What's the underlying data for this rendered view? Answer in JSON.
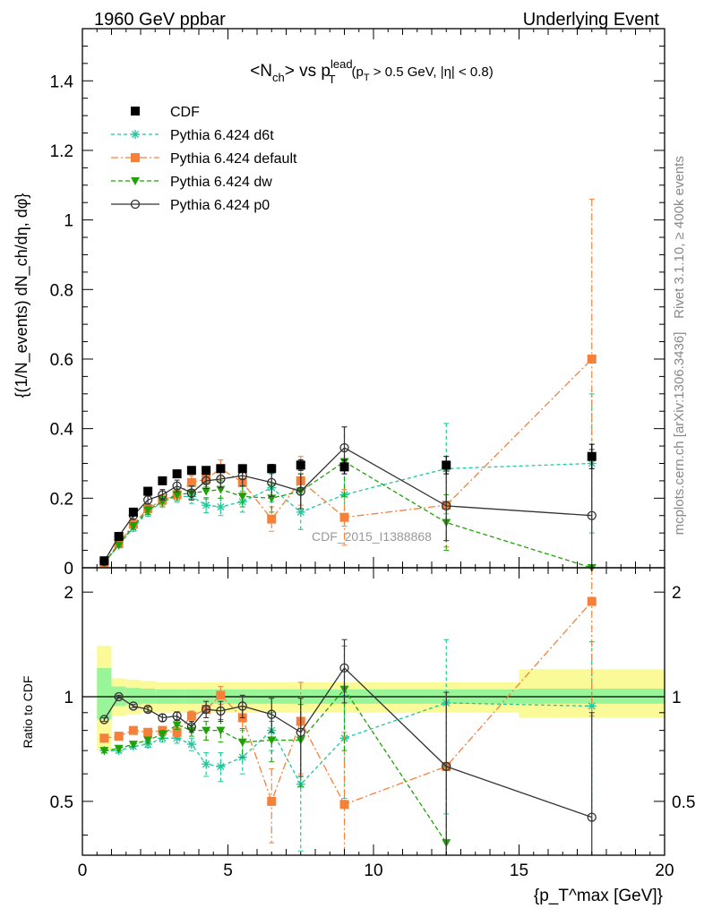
{
  "header": {
    "left": "1960 GeV ppbar",
    "right": "Underlying Event"
  },
  "side_labels": {
    "rivet": "Rivet 3.1.10, ≥ 400k events",
    "mcplots": "mcplots.cern.ch [arXiv:1306.3436]"
  },
  "watermark": "CDF_2015_I1388868",
  "chart_data": [
    {
      "type": "scatter",
      "title_parts": {
        "main": "<N",
        "sub1": "ch",
        "mid": "> vs p",
        "sup": "lead",
        "sub2": "T",
        "cut": "(p",
        "cut_sub": "T",
        "cut_rest": " > 0.5 GeV, |η| < 0.8)"
      },
      "ylabel": "{(1/N_events) dN_ch/dη, dφ}",
      "ylim": [
        0,
        1.55
      ],
      "yticks": [
        "0",
        "0.2",
        "0.4",
        "0.6",
        "0.8",
        "1",
        "1.2",
        "1.4"
      ],
      "yticks_values": [
        0,
        0.2,
        0.4,
        0.6,
        0.8,
        1.0,
        1.2,
        1.4
      ],
      "xlim": [
        0,
        20
      ],
      "legend_position": "top-left",
      "series": [
        {
          "name": "CDF",
          "color": "#000000",
          "marker": "square",
          "x": [
            0.75,
            1.25,
            1.75,
            2.25,
            2.75,
            3.25,
            3.75,
            4.25,
            4.75,
            5.5,
            6.5,
            7.5,
            9.0,
            12.5,
            17.5
          ],
          "y": [
            0.02,
            0.09,
            0.16,
            0.22,
            0.25,
            0.27,
            0.28,
            0.28,
            0.285,
            0.285,
            0.285,
            0.295,
            0.29,
            0.295,
            0.32
          ],
          "err": [
            0.002,
            0.004,
            0.005,
            0.006,
            0.006,
            0.007,
            0.007,
            0.008,
            0.009,
            0.01,
            0.012,
            0.015,
            0.02,
            0.025,
            0.035
          ]
        },
        {
          "name": "Pythia 6.424 d6t",
          "color": "#1fc89a",
          "marker": "star",
          "dash": "4,3",
          "x": [
            0.75,
            1.25,
            1.75,
            2.25,
            2.75,
            3.25,
            3.75,
            4.25,
            4.75,
            5.5,
            6.5,
            7.5,
            9.0,
            12.5,
            17.5
          ],
          "y": [
            0.015,
            0.065,
            0.115,
            0.16,
            0.19,
            0.205,
            0.205,
            0.18,
            0.175,
            0.19,
            0.23,
            0.16,
            0.21,
            0.285,
            0.3
          ],
          "err": [
            0.003,
            0.006,
            0.01,
            0.012,
            0.015,
            0.017,
            0.02,
            0.022,
            0.025,
            0.03,
            0.04,
            0.05,
            0.09,
            0.13,
            0.2
          ]
        },
        {
          "name": "Pythia 6.424 default",
          "color": "#f5803a",
          "marker": "square",
          "dash": "8,3,2,3",
          "x": [
            0.75,
            1.25,
            1.75,
            2.25,
            2.75,
            3.25,
            3.75,
            4.25,
            4.75,
            5.5,
            6.5,
            7.5,
            9.0,
            12.5,
            17.5
          ],
          "y": [
            0.015,
            0.07,
            0.125,
            0.17,
            0.195,
            0.21,
            0.245,
            0.255,
            0.285,
            0.245,
            0.14,
            0.25,
            0.145,
            0.18,
            0.6
          ],
          "err": [
            0.003,
            0.006,
            0.01,
            0.012,
            0.015,
            0.017,
            0.02,
            0.022,
            0.025,
            0.03,
            0.035,
            0.07,
            0.08,
            0.12,
            0.46
          ]
        },
        {
          "name": "Pythia 6.424 dw",
          "color": "#22a00a",
          "marker": "triangle-down",
          "dash": "5,3",
          "x": [
            0.75,
            1.25,
            1.75,
            2.25,
            2.75,
            3.25,
            3.75,
            4.25,
            4.75,
            5.5,
            6.5,
            7.5,
            9.0,
            12.5,
            17.5
          ],
          "y": [
            0.015,
            0.065,
            0.12,
            0.165,
            0.19,
            0.21,
            0.215,
            0.22,
            0.225,
            0.205,
            0.2,
            0.22,
            0.305,
            0.13,
            0.0
          ],
          "err": [
            0.003,
            0.006,
            0.01,
            0.012,
            0.015,
            0.017,
            0.02,
            0.022,
            0.025,
            0.03,
            0.04,
            0.05,
            0.1,
            0.08,
            0.0
          ]
        },
        {
          "name": "Pythia 6.424 p0",
          "color": "#333333",
          "marker": "circle-open",
          "x": [
            0.75,
            1.25,
            1.75,
            2.25,
            2.75,
            3.25,
            3.75,
            4.25,
            4.75,
            5.5,
            6.5,
            7.5,
            9.0,
            12.5,
            17.5
          ],
          "y": [
            0.018,
            0.09,
            0.15,
            0.195,
            0.21,
            0.235,
            0.215,
            0.25,
            0.255,
            0.265,
            0.245,
            0.22,
            0.345,
            0.178,
            0.15
          ],
          "err": [
            0.003,
            0.006,
            0.01,
            0.012,
            0.015,
            0.017,
            0.02,
            0.022,
            0.025,
            0.03,
            0.04,
            0.05,
            0.06,
            0.1,
            0.19
          ]
        }
      ]
    },
    {
      "type": "scatter",
      "ylabel": "Ratio to CDF",
      "xlabel": "{p_T^max [GeV]}",
      "ylim": [
        0.35,
        2.35
      ],
      "log_y": true,
      "yticks": [
        "0.5",
        "1",
        "2"
      ],
      "yticks_values": [
        0.5,
        1,
        2
      ],
      "xlim": [
        0,
        20
      ],
      "xticks": [
        "0",
        "5",
        "10",
        "15",
        "20"
      ],
      "xticks_values": [
        0,
        5,
        10,
        15,
        20
      ],
      "reference_line": 1,
      "uncertainty_bands": {
        "edges": [
          0.5,
          1.0,
          1.5,
          2.0,
          2.5,
          3.0,
          3.5,
          4.0,
          4.5,
          5.0,
          6.0,
          7.0,
          8.0,
          10.0,
          15.0,
          20.0
        ],
        "inner_color": "#98f598",
        "outer_color": "#fafa98",
        "inner": [
          [
            0.86,
            1.21
          ],
          [
            0.94,
            1.07
          ],
          [
            0.95,
            1.06
          ],
          [
            0.955,
            1.055
          ],
          [
            0.955,
            1.05
          ],
          [
            0.955,
            1.05
          ],
          [
            0.955,
            1.05
          ],
          [
            0.955,
            1.05
          ],
          [
            0.955,
            1.05
          ],
          [
            0.955,
            1.05
          ],
          [
            0.955,
            1.05
          ],
          [
            0.955,
            1.05
          ],
          [
            0.955,
            1.05
          ],
          [
            0.955,
            1.05
          ],
          [
            0.955,
            1.055
          ]
        ],
        "outer": [
          [
            0.7,
            1.4
          ],
          [
            0.88,
            1.13
          ],
          [
            0.89,
            1.12
          ],
          [
            0.9,
            1.11
          ],
          [
            0.9,
            1.1
          ],
          [
            0.9,
            1.1
          ],
          [
            0.9,
            1.1
          ],
          [
            0.9,
            1.1
          ],
          [
            0.9,
            1.1
          ],
          [
            0.9,
            1.1
          ],
          [
            0.9,
            1.1
          ],
          [
            0.9,
            1.1
          ],
          [
            0.9,
            1.1
          ],
          [
            0.9,
            1.1
          ],
          [
            0.87,
            1.2
          ]
        ]
      },
      "series": [
        {
          "name": "Pythia 6.424 d6t",
          "color": "#1fc89a",
          "marker": "star",
          "dash": "4,3",
          "x": [
            0.75,
            1.25,
            1.75,
            2.25,
            2.75,
            3.25,
            3.75,
            4.25,
            4.75,
            5.5,
            6.5,
            7.5,
            9.0,
            12.5,
            17.5
          ],
          "y": [
            0.7,
            0.7,
            0.72,
            0.73,
            0.76,
            0.76,
            0.73,
            0.64,
            0.63,
            0.67,
            0.8,
            0.56,
            0.76,
            0.96,
            0.94
          ],
          "err": [
            0.01,
            0.01,
            0.01,
            0.015,
            0.02,
            0.025,
            0.03,
            0.05,
            0.06,
            0.07,
            0.1,
            0.2,
            0.25,
            0.5,
            0.5
          ]
        },
        {
          "name": "Pythia 6.424 default",
          "color": "#f5803a",
          "marker": "square",
          "dash": "8,3,2,3",
          "x": [
            0.75,
            1.25,
            1.75,
            2.25,
            2.75,
            3.25,
            3.75,
            4.25,
            4.75,
            5.5,
            6.5,
            7.5,
            9.0,
            12.5,
            17.5
          ],
          "y": [
            0.76,
            0.77,
            0.8,
            0.79,
            0.8,
            0.79,
            0.88,
            0.92,
            1.01,
            0.87,
            0.5,
            0.85,
            0.49,
            0.63,
            1.88
          ],
          "err": [
            0.01,
            0.01,
            0.01,
            0.015,
            0.02,
            0.025,
            0.03,
            0.05,
            0.06,
            0.07,
            0.12,
            0.25,
            0.3,
            0.4,
            1.0
          ]
        },
        {
          "name": "Pythia 6.424 dw",
          "color": "#22a00a",
          "marker": "triangle-down",
          "dash": "5,3",
          "x": [
            0.75,
            1.25,
            1.75,
            2.25,
            2.75,
            3.25,
            3.75,
            4.25,
            4.75,
            5.5,
            6.5,
            7.5,
            9.0,
            12.5
          ],
          "y": [
            0.7,
            0.71,
            0.73,
            0.75,
            0.78,
            0.83,
            0.8,
            0.8,
            0.8,
            0.74,
            0.75,
            0.75,
            1.05,
            0.38
          ],
          "err": [
            0.01,
            0.01,
            0.01,
            0.015,
            0.02,
            0.025,
            0.03,
            0.05,
            0.06,
            0.07,
            0.1,
            0.2,
            0.35,
            0.25
          ]
        },
        {
          "name": "Pythia 6.424 p0",
          "color": "#333333",
          "marker": "circle-open",
          "x": [
            0.75,
            1.25,
            1.75,
            2.25,
            2.75,
            3.25,
            3.75,
            4.25,
            4.75,
            5.5,
            6.5,
            7.5,
            9.0,
            12.5,
            17.5
          ],
          "y": [
            0.86,
            1.0,
            0.94,
            0.92,
            0.87,
            0.88,
            0.82,
            0.92,
            0.91,
            0.94,
            0.89,
            0.79,
            1.21,
            0.63,
            0.45
          ],
          "err": [
            0.01,
            0.01,
            0.01,
            0.015,
            0.02,
            0.025,
            0.03,
            0.05,
            0.06,
            0.07,
            0.1,
            0.2,
            0.25,
            0.4,
            0.45
          ]
        }
      ]
    }
  ]
}
